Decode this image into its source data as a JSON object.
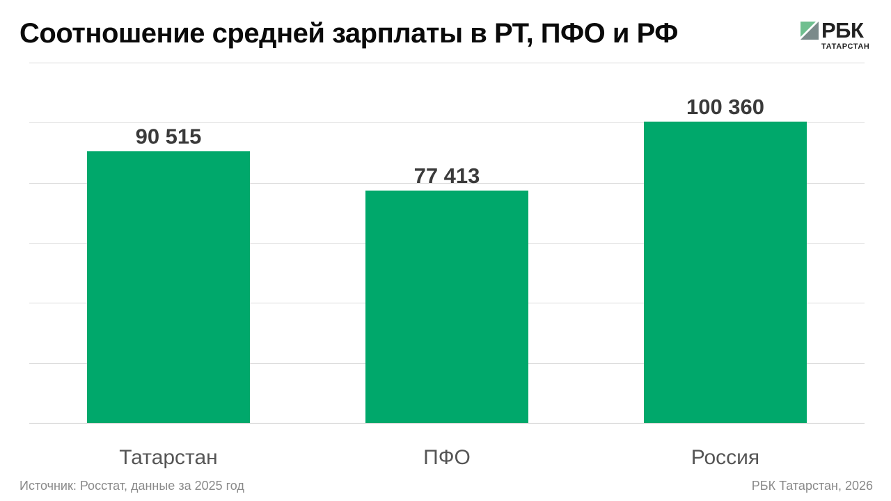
{
  "header": {
    "title": "Соотношение средней зарплаты в РТ, ПФО и РФ"
  },
  "logo": {
    "name": "РБК",
    "sub": "ТАТАРСТАН"
  },
  "footer": {
    "source": "Источник: Росстат, данные за 2025 год",
    "credit": "РБК Татарстан, 2026"
  },
  "colors": {
    "bar": "#00a86b",
    "grid": "#dcdcdc",
    "value_label": "#3a3a3a",
    "category_label": "#555555"
  },
  "chart_data": {
    "type": "bar",
    "categories": [
      "Татарстан",
      "ПФО",
      "Россия"
    ],
    "values": [
      90515,
      77413,
      100360
    ],
    "value_labels": [
      "90 515",
      "77 413",
      "100 360"
    ],
    "title": "Соотношение средней зарплаты в РТ, ПФО и РФ",
    "xlabel": "",
    "ylabel": "",
    "ylim": [
      0,
      120000
    ],
    "grid": true,
    "legend": "none"
  }
}
